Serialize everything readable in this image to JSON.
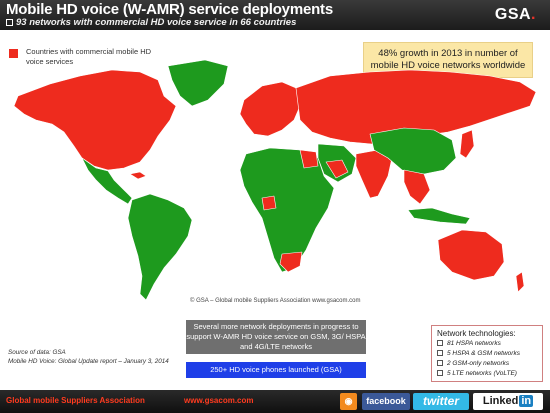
{
  "header": {
    "title": "Mobile HD voice (W-AMR) service deployments",
    "subtitle": "93 networks with commercial HD voice service in 66 countries",
    "logo": "GSA"
  },
  "legend": {
    "label": "Countries with commercial mobile HD voice services",
    "color": "#ee2b1e"
  },
  "growth_callout": "48% growth in 2013 in number of mobile HD voice networks worldwide",
  "map": {
    "copyright": "© GSA – Global mobile Suppliers Association www.gsacom.com",
    "hd_voice_color": "#ee2b1e",
    "other_color": "#1e9a1e",
    "regions_with_hd_voice": [
      "North America",
      "Europe",
      "Russia",
      "Central Asia",
      "India",
      "Southeast Asia",
      "Japan",
      "Australia",
      "South Africa",
      "Nigeria",
      "Egypt",
      "Saudi Arabia"
    ],
    "regions_without_hd_voice": [
      "Greenland",
      "Mexico",
      "Central America",
      "South America",
      "Africa",
      "Middle East",
      "China",
      "Mongolia",
      "Indonesia"
    ]
  },
  "in_progress": "Several more network deployments in progress to support W-AMR HD voice service on GSM, 3G/ HSPA and 4G/LTE networks",
  "phones": "250+ HD voice phones launched (GSA)",
  "source": {
    "line1": "Source of data: GSA",
    "line2": "Mobile HD Voice: Global Update report – January 3, 2014"
  },
  "technologies": {
    "heading": "Network technologies:",
    "items": [
      "81 HSPA networks",
      "5 HSPA & GSM networks",
      "2 GSM-only networks",
      "5 LTE networks (VoLTE)"
    ]
  },
  "footer": {
    "org": "Global mobile Suppliers Association",
    "url": "www.gsacom.com",
    "facebook": "facebook",
    "twitter": "twitter",
    "linkedin": "Linked",
    "linkedin_in": "in"
  }
}
